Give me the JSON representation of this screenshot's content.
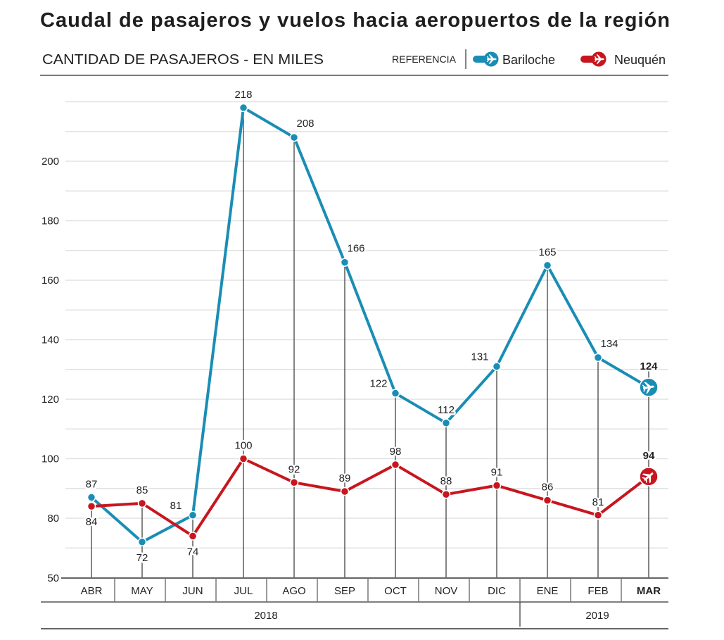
{
  "header": {
    "title": "Caudal de pasajeros y vuelos hacia aeropuertos de la región",
    "subtitle": "CANTIDAD DE PASAJEROS - EN MILES",
    "legend_label": "REFERENCIA",
    "legend": [
      {
        "name": "Bariloche",
        "color": "#1a8db5",
        "icon": "airplane-icon"
      },
      {
        "name": "Neuquén",
        "color": "#c8161e",
        "icon": "airplane-icon"
      }
    ]
  },
  "chart_data": {
    "type": "line",
    "title": "Caudal de pasajeros y vuelos hacia aeropuertos de la región",
    "ylabel": "CANTIDAD DE PASAJEROS - EN MILES",
    "xlabel": "",
    "categories": [
      "ABR",
      "MAY",
      "JUN",
      "JUL",
      "AGO",
      "SEP",
      "OCT",
      "NOV",
      "DIC",
      "ENE",
      "FEB",
      "MAR"
    ],
    "highlight_category": "MAR",
    "years": [
      {
        "label": "2018",
        "from": "ABR",
        "to": "DIC"
      },
      {
        "label": "2019",
        "from": "ENE",
        "to": "MAR"
      }
    ],
    "series": [
      {
        "name": "Bariloche",
        "color": "#1a8db5",
        "values": [
          87,
          72,
          81,
          218,
          208,
          166,
          122,
          112,
          131,
          165,
          134,
          124
        ],
        "label_positions": [
          "above",
          "below",
          "above-left",
          "above",
          "above-right",
          "above-right",
          "above-left",
          "above",
          "above-left",
          "above",
          "above-right",
          "above"
        ]
      },
      {
        "name": "Neuquén",
        "color": "#c8161e",
        "values": [
          84,
          85,
          74,
          100,
          92,
          89,
          98,
          88,
          91,
          86,
          81,
          94
        ],
        "label_positions": [
          "below",
          "above",
          "below",
          "above",
          "above",
          "above",
          "above",
          "above",
          "above",
          "above",
          "above",
          "above"
        ]
      }
    ],
    "ylim": [
      50,
      220
    ],
    "y_axis_break": true,
    "yticks": [
      50,
      80,
      100,
      120,
      140,
      160,
      180,
      200
    ],
    "gridline_step": 10,
    "grid": true,
    "legend_position": "top-right"
  }
}
